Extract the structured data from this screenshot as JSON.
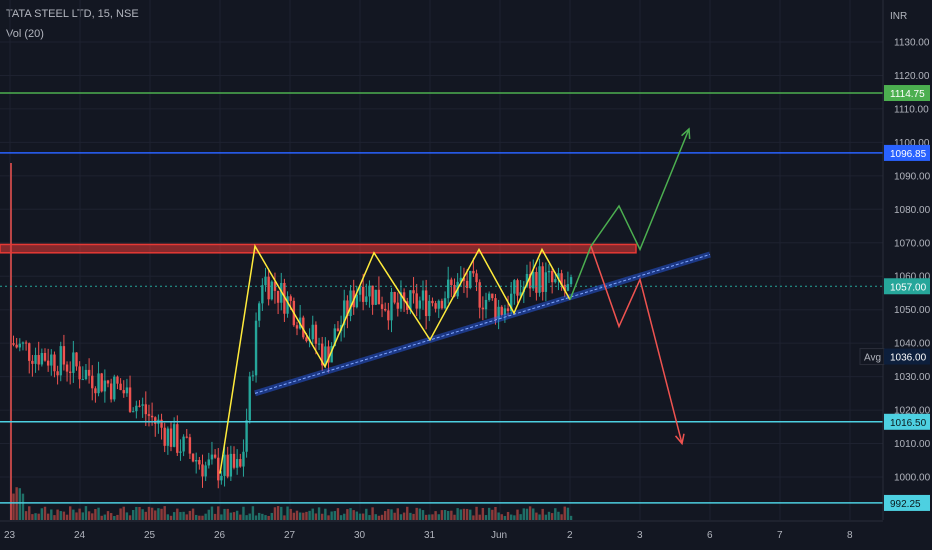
{
  "header": {
    "symbol_line": "TATA STEEL LTD, 15, NSE",
    "volume_label": "Vol (20)",
    "currency": "INR"
  },
  "chart_data": {
    "type": "candlestick",
    "y_axis": {
      "unit": "INR",
      "ticks": [
        1000,
        1010,
        1020,
        1030,
        1040,
        1050,
        1060,
        1070,
        1080,
        1090,
        1100,
        1110,
        1120,
        1130
      ],
      "tick_labels": [
        "1000.00",
        "1010.00",
        "1020.00",
        "1030.00",
        "1040.00",
        "1050.00",
        "1060.00",
        "1070.00",
        "1080.00",
        "1090.00",
        "1100.00",
        "1110.00",
        "1120.00",
        "1130.00"
      ],
      "range": [
        990,
        1140
      ]
    },
    "x_axis": {
      "tick_labels": [
        "23",
        "24",
        "25",
        "26",
        "27",
        "30",
        "31",
        "Jun",
        "2",
        "3",
        "6",
        "7",
        "8"
      ]
    },
    "horizontal_levels": [
      {
        "label": "1114.75",
        "value": 1114.75,
        "color": "#4caf50"
      },
      {
        "label": "1096.85",
        "value": 1096.85,
        "color": "#2962ff"
      },
      {
        "label": "1057.00",
        "value": 1057.0,
        "color": "#26a69a",
        "note": "last price"
      },
      {
        "label": "1016.50",
        "value": 1016.5,
        "color": "#4dd0e1"
      },
      {
        "label": "992.25",
        "value": 992.25,
        "color": "#4dd0e1"
      }
    ],
    "avg_label": {
      "prefix": "Avg",
      "value": "1036.00"
    },
    "resistance_zone": {
      "from": 1067,
      "to": 1069.5,
      "color": "#e53935"
    },
    "support_trendline": {
      "start": [
        26.5,
        1025
      ],
      "end": [
        33.0,
        1066.5
      ],
      "color": "#2962ff"
    },
    "yellow_zigzag": [
      [
        26.0,
        1001
      ],
      [
        26.5,
        1069
      ],
      [
        27.5,
        1033
      ],
      [
        28.2,
        1067
      ],
      [
        29.0,
        1041
      ],
      [
        29.7,
        1068
      ],
      [
        30.2,
        1049
      ],
      [
        30.6,
        1068
      ],
      [
        31.0,
        1053
      ]
    ],
    "bull_path": [
      [
        31.0,
        1053
      ],
      [
        31.3,
        1069
      ],
      [
        31.7,
        1081
      ],
      [
        32.0,
        1068
      ],
      [
        32.7,
        1104
      ]
    ],
    "bear_path": [
      [
        31.3,
        1069
      ],
      [
        31.7,
        1045
      ],
      [
        32.0,
        1059
      ],
      [
        32.6,
        1010
      ]
    ]
  }
}
